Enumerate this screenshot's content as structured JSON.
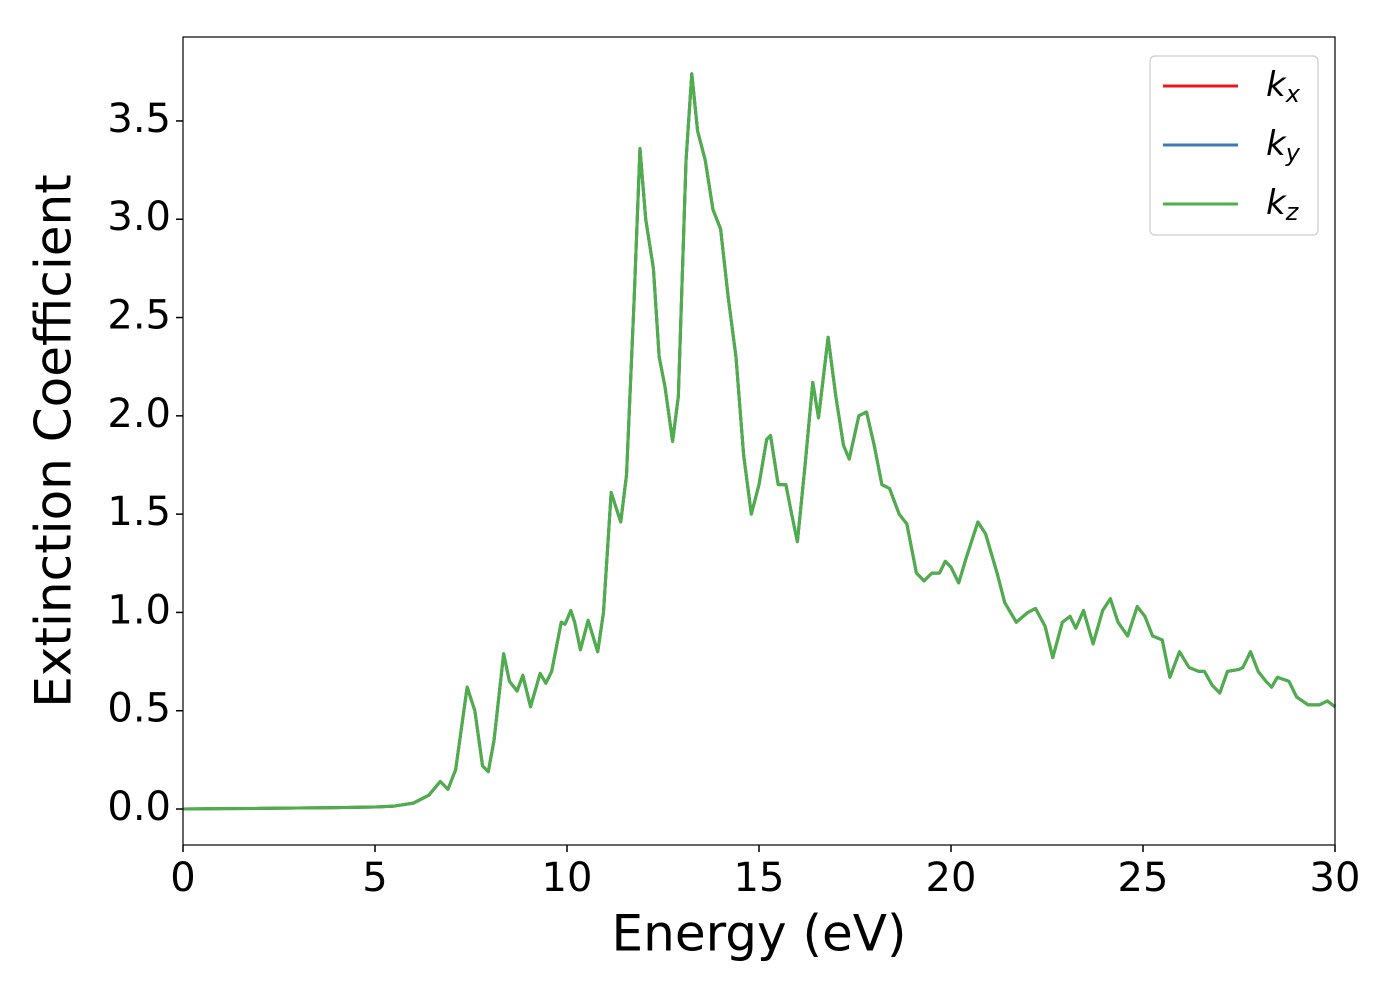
{
  "chart_data": {
    "type": "line",
    "xlabel": "Energy (eV)",
    "ylabel": "Extinction Coefficient",
    "xlim": [
      0,
      30
    ],
    "ylim": [
      -0.183,
      3.927
    ],
    "xticks": [
      0,
      5,
      10,
      15,
      20,
      25,
      30
    ],
    "yticks": [
      {
        "value": 0,
        "label": "0.0"
      },
      0.5,
      {
        "value": 1,
        "label": "1.0"
      },
      1.5,
      {
        "value": 2,
        "label": "2.0"
      },
      2.5,
      {
        "value": 3,
        "label": "3.0"
      },
      3.5
    ],
    "legend": "upper right",
    "x": [
      0,
      1,
      2,
      3,
      4,
      5,
      5.5,
      6,
      6.4,
      6.7,
      6.9,
      7.1,
      7.4,
      7.6,
      7.8,
      7.95,
      8.1,
      8.35,
      8.5,
      8.7,
      8.85,
      9.05,
      9.3,
      9.45,
      9.6,
      9.85,
      9.95,
      10.1,
      10.2,
      10.35,
      10.55,
      10.8,
      10.95,
      11.15,
      11.25,
      11.4,
      11.55,
      11.75,
      11.9,
      12.05,
      12.25,
      12.4,
      12.55,
      12.75,
      12.9,
      13.1,
      13.25,
      13.4,
      13.6,
      13.8,
      14.0,
      14.2,
      14.4,
      14.6,
      14.8,
      15.0,
      15.2,
      15.3,
      15.5,
      15.7,
      15.85,
      16.0,
      16.2,
      16.4,
      16.55,
      16.8,
      17.0,
      17.2,
      17.35,
      17.6,
      17.8,
      18.0,
      18.2,
      18.4,
      18.65,
      18.85,
      19.1,
      19.3,
      19.5,
      19.7,
      19.85,
      20.0,
      20.2,
      20.4,
      20.7,
      20.9,
      21.2,
      21.4,
      21.7,
      22.0,
      22.2,
      22.45,
      22.65,
      22.9,
      23.1,
      23.25,
      23.45,
      23.7,
      23.95,
      24.15,
      24.35,
      24.6,
      24.85,
      25.05,
      25.25,
      25.5,
      25.7,
      25.95,
      26.2,
      26.45,
      26.6,
      26.8,
      27.0,
      27.2,
      27.5,
      27.6,
      27.8,
      28.0,
      28.2,
      28.35,
      28.5,
      28.8,
      29.0,
      29.3,
      29.6,
      29.8,
      30.0
    ],
    "series": [
      {
        "name": "kx",
        "color": "#e41a1c",
        "values": [
          0,
          0.002,
          0.003,
          0.005,
          0.007,
          0.01,
          0.015,
          0.03,
          0.07,
          0.14,
          0.1,
          0.2,
          0.62,
          0.5,
          0.22,
          0.19,
          0.35,
          0.79,
          0.65,
          0.6,
          0.68,
          0.52,
          0.69,
          0.64,
          0.7,
          0.95,
          0.94,
          1.01,
          0.95,
          0.81,
          0.96,
          0.8,
          1.0,
          1.61,
          1.55,
          1.46,
          1.7,
          2.6,
          3.36,
          3.0,
          2.75,
          2.3,
          2.15,
          1.87,
          2.1,
          3.3,
          3.74,
          3.45,
          3.3,
          3.05,
          2.95,
          2.6,
          2.3,
          1.8,
          1.5,
          1.65,
          1.88,
          1.9,
          1.65,
          1.65,
          1.5,
          1.36,
          1.75,
          2.17,
          1.99,
          2.4,
          2.1,
          1.85,
          1.78,
          2.0,
          2.02,
          1.85,
          1.65,
          1.63,
          1.5,
          1.45,
          1.2,
          1.16,
          1.2,
          1.2,
          1.26,
          1.23,
          1.15,
          1.28,
          1.46,
          1.4,
          1.2,
          1.05,
          0.95,
          1.0,
          1.02,
          0.93,
          0.77,
          0.95,
          0.98,
          0.92,
          1.01,
          0.84,
          1.01,
          1.07,
          0.95,
          0.88,
          1.03,
          0.98,
          0.88,
          0.86,
          0.67,
          0.8,
          0.72,
          0.7,
          0.7,
          0.63,
          0.59,
          0.7,
          0.71,
          0.72,
          0.8,
          0.7,
          0.65,
          0.62,
          0.67,
          0.65,
          0.57,
          0.53,
          0.53,
          0.55,
          0.52
        ]
      },
      {
        "name": "ky",
        "color": "#377eb8",
        "values": [
          0,
          0.002,
          0.003,
          0.005,
          0.007,
          0.01,
          0.015,
          0.03,
          0.07,
          0.14,
          0.1,
          0.2,
          0.62,
          0.5,
          0.22,
          0.19,
          0.35,
          0.79,
          0.65,
          0.6,
          0.68,
          0.52,
          0.69,
          0.64,
          0.7,
          0.95,
          0.94,
          1.01,
          0.95,
          0.81,
          0.96,
          0.8,
          1.0,
          1.61,
          1.55,
          1.46,
          1.7,
          2.6,
          3.36,
          3.0,
          2.75,
          2.3,
          2.15,
          1.87,
          2.1,
          3.3,
          3.74,
          3.45,
          3.3,
          3.05,
          2.95,
          2.6,
          2.3,
          1.8,
          1.5,
          1.65,
          1.88,
          1.9,
          1.65,
          1.65,
          1.5,
          1.36,
          1.75,
          2.17,
          1.99,
          2.4,
          2.1,
          1.85,
          1.78,
          2.0,
          2.02,
          1.85,
          1.65,
          1.63,
          1.5,
          1.45,
          1.2,
          1.16,
          1.2,
          1.2,
          1.26,
          1.23,
          1.15,
          1.28,
          1.46,
          1.4,
          1.2,
          1.05,
          0.95,
          1.0,
          1.02,
          0.93,
          0.77,
          0.95,
          0.98,
          0.92,
          1.01,
          0.84,
          1.01,
          1.07,
          0.95,
          0.88,
          1.03,
          0.98,
          0.88,
          0.86,
          0.67,
          0.8,
          0.72,
          0.7,
          0.7,
          0.63,
          0.59,
          0.7,
          0.71,
          0.72,
          0.8,
          0.7,
          0.65,
          0.62,
          0.67,
          0.65,
          0.57,
          0.53,
          0.53,
          0.55,
          0.52
        ]
      },
      {
        "name": "kz",
        "color": "#4daf4a",
        "values": [
          0,
          0.002,
          0.003,
          0.005,
          0.007,
          0.01,
          0.015,
          0.03,
          0.07,
          0.14,
          0.1,
          0.2,
          0.62,
          0.5,
          0.22,
          0.19,
          0.35,
          0.79,
          0.65,
          0.6,
          0.68,
          0.52,
          0.69,
          0.64,
          0.7,
          0.95,
          0.94,
          1.01,
          0.95,
          0.81,
          0.96,
          0.8,
          1.0,
          1.61,
          1.55,
          1.46,
          1.7,
          2.6,
          3.36,
          3.0,
          2.75,
          2.3,
          2.15,
          1.87,
          2.1,
          3.3,
          3.74,
          3.45,
          3.3,
          3.05,
          2.95,
          2.6,
          2.3,
          1.8,
          1.5,
          1.65,
          1.88,
          1.9,
          1.65,
          1.65,
          1.5,
          1.36,
          1.75,
          2.17,
          1.99,
          2.4,
          2.1,
          1.85,
          1.78,
          2.0,
          2.02,
          1.85,
          1.65,
          1.63,
          1.5,
          1.45,
          1.2,
          1.16,
          1.2,
          1.2,
          1.26,
          1.23,
          1.15,
          1.28,
          1.46,
          1.4,
          1.2,
          1.05,
          0.95,
          1.0,
          1.02,
          0.93,
          0.77,
          0.95,
          0.98,
          0.92,
          1.01,
          0.84,
          1.01,
          1.07,
          0.95,
          0.88,
          1.03,
          0.98,
          0.88,
          0.86,
          0.67,
          0.8,
          0.72,
          0.7,
          0.7,
          0.63,
          0.59,
          0.7,
          0.71,
          0.72,
          0.8,
          0.7,
          0.65,
          0.62,
          0.67,
          0.65,
          0.57,
          0.53,
          0.53,
          0.55,
          0.52
        ]
      }
    ]
  }
}
